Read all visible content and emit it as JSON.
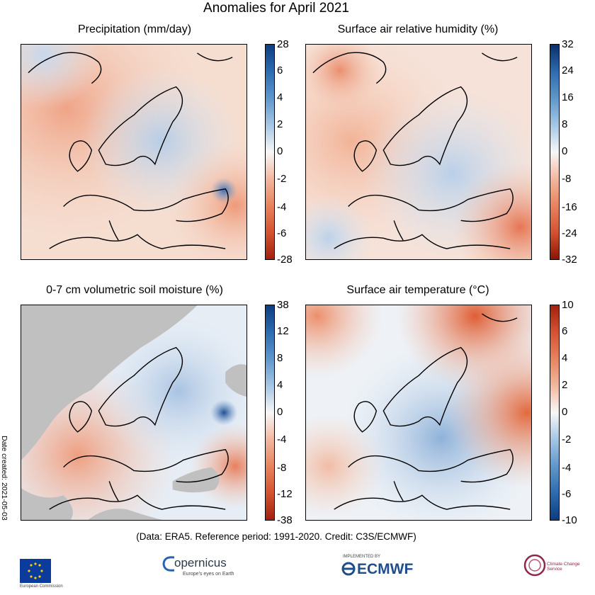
{
  "title": "Anomalies for April 2021",
  "panels": [
    {
      "title": "Precipitation (mm/day)",
      "colorbar_ticks": [
        "28",
        "6",
        "4",
        "2",
        "0",
        "-2",
        "-4",
        "-6",
        "-28"
      ],
      "colors": {
        "positive": "#1f5fa8",
        "negative": "#c23b1a"
      },
      "pattern": "mixed-light-red-west-blue-east"
    },
    {
      "title": "Surface air relative humidity (%)",
      "colorbar_ticks": [
        "32",
        "24",
        "16",
        "8",
        "0",
        "-8",
        "-16",
        "-24",
        "-32"
      ],
      "colors": {
        "positive": "#1f5fa8",
        "negative": "#c23b1a"
      },
      "pattern": "red-west-and-southeast-blue-central"
    },
    {
      "title": "0-7 cm volumetric soil moisture (%)",
      "colorbar_ticks": [
        "38",
        "12",
        "8",
        "4",
        "0",
        "-4",
        "-8",
        "-12",
        "-38"
      ],
      "colors": {
        "positive": "#1f5fa8",
        "negative": "#c23b1a",
        "masked": "#c0c0c0"
      },
      "pattern": "grey-ocean-mask-red-west-blue-east"
    },
    {
      "title": "Surface air temperature (°C)",
      "colorbar_ticks": [
        "10",
        "6",
        "4",
        "2",
        "0",
        "-2",
        "-4",
        "-6",
        "-10"
      ],
      "colors": {
        "positive": "#d3461c",
        "negative": "#2f6eb0"
      },
      "pattern": "warm-north-and-east-cold-central-europe"
    }
  ],
  "footer": "(Data: ERA5.  Reference period: 1991-2020.  Credit: C3S/ECMWF)",
  "date_created": "Date created: 2021-05-03",
  "logos": {
    "eu": {
      "icon": "eu-flag-icon",
      "text": "European Commission"
    },
    "copernicus": {
      "icon": "copernicus-logo-icon",
      "text": "opernicus",
      "tagline": "Europe's eyes on Earth"
    },
    "ecmwf": {
      "icon": "ecmwf-logo-icon",
      "text": "ECMWF",
      "tagline": "IMPLEMENTED BY"
    },
    "c3s": {
      "icon": "c3s-logo-icon",
      "text": "Climate Change Service"
    }
  }
}
